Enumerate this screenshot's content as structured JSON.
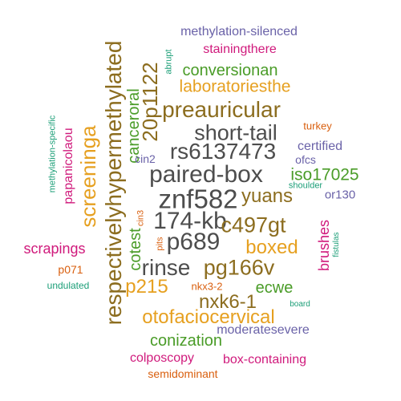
{
  "palette": {
    "grey": "#4d4d4d",
    "brown": "#8c6d1f",
    "gold": "#e6a020",
    "green": "#4a9c28",
    "magenta": "#d01a7c",
    "purple": "#6a62a8",
    "orange": "#d95f0e",
    "teal": "#1b9e77"
  },
  "words": [
    {
      "text": "znf582",
      "color": "#4d4d4d"
    },
    {
      "text": "paired-box",
      "color": "#4d4d4d"
    },
    {
      "text": "174-kb",
      "color": "#4d4d4d"
    },
    {
      "text": "rs6137473",
      "color": "#4d4d4d"
    },
    {
      "text": "short-tail",
      "color": "#4d4d4d"
    },
    {
      "text": "p689",
      "color": "#4d4d4d"
    },
    {
      "text": "rinse",
      "color": "#4d4d4d"
    },
    {
      "text": "respectivelyhypermethylated",
      "color": "#8c6d1f"
    },
    {
      "text": "preauricular",
      "color": "#8c6d1f"
    },
    {
      "text": "20p1122",
      "color": "#8c6d1f"
    },
    {
      "text": "pg166v",
      "color": "#8c6d1f"
    },
    {
      "text": "c497gt",
      "color": "#8c6d1f"
    },
    {
      "text": "yuans",
      "color": "#8c6d1f"
    },
    {
      "text": "nxk6-1",
      "color": "#8c6d1f"
    },
    {
      "text": "screeninga",
      "color": "#e6a020"
    },
    {
      "text": "otofaciocervical",
      "color": "#e6a020"
    },
    {
      "text": "boxed",
      "color": "#e6a020"
    },
    {
      "text": "p215",
      "color": "#e6a020"
    },
    {
      "text": "laboratoriesthe",
      "color": "#e6a020"
    },
    {
      "text": "conversionan",
      "color": "#4a9c28"
    },
    {
      "text": "iso17025",
      "color": "#4a9c28"
    },
    {
      "text": "canceroral",
      "color": "#4a9c28"
    },
    {
      "text": "conization",
      "color": "#4a9c28"
    },
    {
      "text": "cotest",
      "color": "#4a9c28"
    },
    {
      "text": "ecwe",
      "color": "#4a9c28"
    },
    {
      "text": "papanicolaou",
      "color": "#d01a7c"
    },
    {
      "text": "scrapings",
      "color": "#d01a7c"
    },
    {
      "text": "brushes",
      "color": "#d01a7c"
    },
    {
      "text": "stainingthere",
      "color": "#d01a7c"
    },
    {
      "text": "colposcopy",
      "color": "#d01a7c"
    },
    {
      "text": "box-containing",
      "color": "#d01a7c"
    },
    {
      "text": "methylation-silenced",
      "color": "#6a62a8"
    },
    {
      "text": "moderatesevere",
      "color": "#6a62a8"
    },
    {
      "text": "certified",
      "color": "#6a62a8"
    },
    {
      "text": "ofcs",
      "color": "#6a62a8"
    },
    {
      "text": "or130",
      "color": "#6a62a8"
    },
    {
      "text": "cin2",
      "color": "#6a62a8"
    },
    {
      "text": "turkey",
      "color": "#d95f0e"
    },
    {
      "text": "semidominant",
      "color": "#d95f0e"
    },
    {
      "text": "p071",
      "color": "#d95f0e"
    },
    {
      "text": "nkx3-2",
      "color": "#d95f0e"
    },
    {
      "text": "cin3",
      "color": "#d95f0e"
    },
    {
      "text": "pits",
      "color": "#d95f0e"
    },
    {
      "text": "methylation-specific",
      "color": "#1b9e77"
    },
    {
      "text": "abrupt",
      "color": "#1b9e77"
    },
    {
      "text": "shoulder",
      "color": "#1b9e77"
    },
    {
      "text": "fistulas",
      "color": "#1b9e77"
    },
    {
      "text": "undulated",
      "color": "#1b9e77"
    },
    {
      "text": "board",
      "color": "#1b9e77"
    }
  ]
}
